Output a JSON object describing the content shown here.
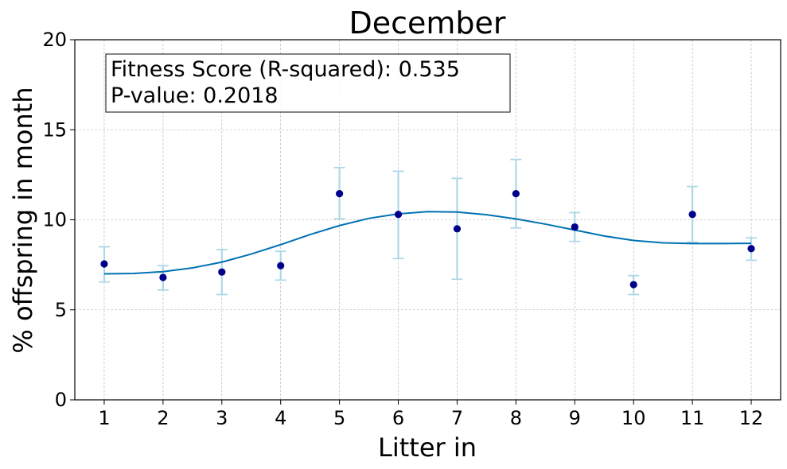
{
  "chart_data": {
    "type": "scatter",
    "title": "December",
    "xlabel": "Litter in",
    "ylabel": "% offspring in month",
    "xlim": [
      0.5,
      12.5
    ],
    "ylim": [
      0,
      20
    ],
    "xticks": [
      1,
      2,
      3,
      4,
      5,
      6,
      7,
      8,
      9,
      10,
      11,
      12
    ],
    "yticks": [
      0,
      5,
      10,
      15,
      20
    ],
    "grid": true,
    "annotation": {
      "line1": "Fitness Score (R-squared): 0.535",
      "line2": "P-value: 0.2018"
    },
    "points": {
      "x": [
        1,
        2,
        3,
        4,
        5,
        6,
        7,
        8,
        9,
        10,
        11,
        12
      ],
      "y": [
        7.55,
        6.8,
        7.1,
        7.45,
        11.45,
        10.3,
        9.5,
        11.45,
        9.6,
        6.4,
        10.3,
        8.4
      ],
      "err_low": [
        6.55,
        6.1,
        5.85,
        6.65,
        10.05,
        7.85,
        6.7,
        9.55,
        8.8,
        5.85,
        8.75,
        7.75
      ],
      "err_high": [
        8.5,
        7.45,
        8.35,
        8.25,
        12.9,
        12.7,
        12.3,
        13.35,
        10.4,
        6.9,
        11.85,
        9.0
      ],
      "color": "#00008b",
      "error_color": "#add8e6"
    },
    "fit_curve": {
      "x": [
        1,
        1.5,
        2,
        2.5,
        3,
        3.5,
        4,
        4.5,
        5,
        5.5,
        6,
        6.5,
        7,
        7.5,
        8,
        8.5,
        9,
        9.5,
        10,
        10.5,
        11,
        11.5,
        12
      ],
      "y": [
        7.0,
        7.02,
        7.12,
        7.33,
        7.65,
        8.1,
        8.62,
        9.18,
        9.68,
        10.08,
        10.33,
        10.45,
        10.43,
        10.28,
        10.05,
        9.76,
        9.43,
        9.1,
        8.85,
        8.72,
        8.68,
        8.68,
        8.69
      ],
      "color": "#0072b2"
    }
  }
}
